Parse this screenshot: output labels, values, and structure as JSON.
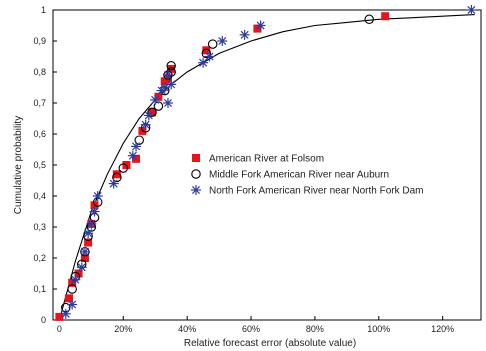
{
  "chart_data": {
    "type": "scatter",
    "xlabel": "Relative forecast error (absolute value)",
    "ylabel": "Cumulative probability",
    "xlim": [
      -0.02,
      1.32
    ],
    "ylim": [
      0,
      1
    ],
    "x_ticks": [
      0,
      0.2,
      0.4,
      0.6,
      0.8,
      1.0,
      1.2
    ],
    "x_tick_labels": [
      "0",
      "20%",
      "40%",
      "60%",
      "80%",
      "100%",
      "120%"
    ],
    "y_ticks": [
      0,
      0.1,
      0.2,
      0.3,
      0.4,
      0.5,
      0.6,
      0.7,
      0.8,
      0.9,
      1
    ],
    "y_tick_labels": [
      "0",
      "0,1",
      "0,2",
      "0,3",
      "0,4",
      "0,5",
      "0,6",
      "0,7",
      "0,8",
      "0,9",
      "1"
    ],
    "grid": false,
    "legend_position": "center-right",
    "series": [
      {
        "name": "American River at Folsom",
        "marker": "filled-square",
        "color": "#e8141c",
        "x": [
          0.0,
          0.03,
          0.04,
          0.06,
          0.08,
          0.09,
          0.1,
          0.11,
          0.18,
          0.21,
          0.24,
          0.26,
          0.29,
          0.31,
          0.33,
          0.34,
          0.35,
          0.46,
          0.62,
          1.02
        ],
        "y": [
          0.01,
          0.07,
          0.12,
          0.15,
          0.2,
          0.25,
          0.31,
          0.37,
          0.47,
          0.5,
          0.52,
          0.61,
          0.67,
          0.72,
          0.77,
          0.78,
          0.81,
          0.87,
          0.94,
          0.98
        ]
      },
      {
        "name": "Middle Fork American River near Auburn",
        "marker": "open-circle",
        "color": "#000000",
        "x": [
          0.02,
          0.04,
          0.05,
          0.07,
          0.08,
          0.09,
          0.1,
          0.11,
          0.12,
          0.18,
          0.2,
          0.25,
          0.27,
          0.29,
          0.31,
          0.33,
          0.34,
          0.35,
          0.35,
          0.46,
          0.48,
          0.97
        ],
        "y": [
          0.04,
          0.1,
          0.14,
          0.18,
          0.22,
          0.27,
          0.3,
          0.33,
          0.38,
          0.46,
          0.49,
          0.58,
          0.62,
          0.67,
          0.69,
          0.74,
          0.79,
          0.8,
          0.82,
          0.86,
          0.89,
          0.97
        ]
      },
      {
        "name": "North Fork American River near North Fork Dam",
        "marker": "asterisk",
        "color": "#2e3c9e",
        "x": [
          0.02,
          0.04,
          0.05,
          0.07,
          0.08,
          0.09,
          0.1,
          0.11,
          0.12,
          0.17,
          0.23,
          0.24,
          0.27,
          0.28,
          0.3,
          0.32,
          0.33,
          0.34,
          0.34,
          0.35,
          0.45,
          0.47,
          0.51,
          0.58,
          0.63,
          1.29
        ],
        "y": [
          0.02,
          0.05,
          0.13,
          0.17,
          0.22,
          0.28,
          0.31,
          0.35,
          0.4,
          0.44,
          0.53,
          0.56,
          0.63,
          0.66,
          0.71,
          0.74,
          0.75,
          0.79,
          0.7,
          0.76,
          0.83,
          0.85,
          0.9,
          0.92,
          0.95,
          1.0
        ]
      }
    ],
    "fitted_curve": {
      "name": "",
      "color": "#000000",
      "x": [
        0.0,
        0.05,
        0.1,
        0.15,
        0.2,
        0.25,
        0.3,
        0.35,
        0.4,
        0.5,
        0.6,
        0.7,
        0.8,
        0.9,
        1.0,
        1.1,
        1.2,
        1.3
      ],
      "y": [
        0.0,
        0.19,
        0.35,
        0.47,
        0.57,
        0.65,
        0.71,
        0.76,
        0.8,
        0.86,
        0.9,
        0.93,
        0.95,
        0.96,
        0.97,
        0.975,
        0.98,
        0.985
      ]
    }
  }
}
